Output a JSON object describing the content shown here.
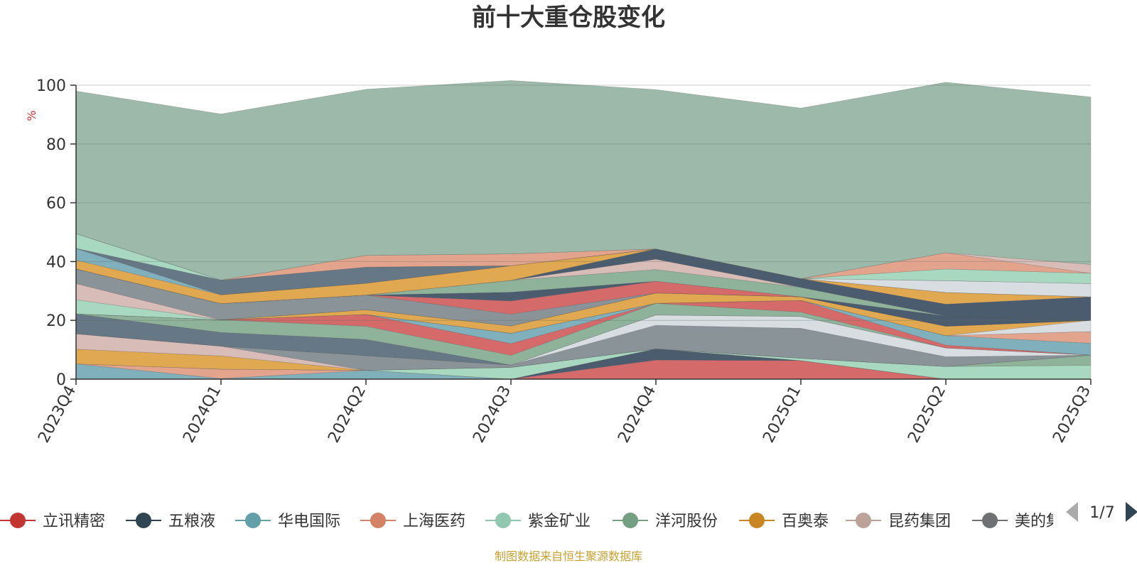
{
  "chart_data": {
    "type": "area",
    "title": "前十大重仓股变化",
    "ylabel": "%",
    "ylim": [
      0,
      100
    ],
    "yticks": [
      0,
      20,
      40,
      60,
      80,
      100
    ],
    "categories": [
      "2023Q4",
      "2024Q1",
      "2024Q2",
      "2024Q3",
      "2024Q4",
      "2025Q1",
      "2025Q2",
      "2025Q3"
    ],
    "series": [
      {
        "name": "立讯精密",
        "color": "#d46a6a",
        "values": [
          0,
          0,
          0,
          0,
          6.5,
          6.3,
          0,
          0
        ]
      },
      {
        "name": "五粮液",
        "color": "#4a5c6e",
        "values": [
          0,
          0,
          0,
          0,
          3.8,
          0,
          0,
          0
        ]
      },
      {
        "name": "华电国际",
        "color": "#7fb0bb",
        "values": [
          5.2,
          0.2,
          3.0,
          0,
          0,
          0,
          0,
          0
        ]
      },
      {
        "name": "上海医药",
        "color": "#e3a48d",
        "values": [
          0,
          3.2,
          0,
          0,
          0,
          0,
          0,
          0
        ]
      },
      {
        "name": "紫金矿业",
        "color": "#a8d8c0",
        "values": [
          0,
          0,
          0,
          4.0,
          0,
          0.8,
          4.3,
          4.7
        ]
      },
      {
        "name": "洋河股份",
        "color": "#8fb29a",
        "values": [
          0,
          0,
          0,
          0,
          0,
          0,
          0,
          3.5
        ]
      },
      {
        "name": "百奥泰",
        "color": "#e0a850",
        "values": [
          5.0,
          4.5,
          0,
          0,
          0,
          0,
          0,
          0
        ]
      },
      {
        "name": "昆药集团",
        "color": "#d8bcb8",
        "values": [
          5.2,
          3.3,
          0,
          0,
          0,
          0,
          0,
          0
        ]
      },
      {
        "name": "美的集团",
        "color": "#8a9498",
        "values": [
          0,
          0,
          5.0,
          0.8,
          8.0,
          10.2,
          3.3,
          0
        ]
      },
      {
        "name": "",
        "color": "#d8dde2",
        "values": [
          0,
          0,
          0,
          0,
          3.5,
          4.0,
          3.0,
          0
        ]
      },
      {
        "name": "",
        "color": "#667886",
        "values": [
          6.8,
          4.7,
          5.5,
          0,
          0,
          0,
          0,
          0
        ]
      },
      {
        "name": "",
        "color": "#8fb29a",
        "values": [
          0,
          4.3,
          4.5,
          3.3,
          4.0,
          1.5,
          0,
          0
        ]
      },
      {
        "name": "",
        "color": "#d46a6a",
        "values": [
          0,
          0,
          4.0,
          4.0,
          0,
          4.0,
          1.0,
          0
        ]
      },
      {
        "name": "",
        "color": "#7fb0bb",
        "values": [
          0,
          0,
          0,
          3.5,
          0,
          0,
          3.2,
          4.0
        ]
      },
      {
        "name": "",
        "color": "#e3a48d",
        "values": [
          0,
          0,
          0,
          0,
          0,
          0,
          0,
          4.0
        ]
      },
      {
        "name": "",
        "color": "#d8dde2",
        "values": [
          0,
          0,
          0,
          0,
          0,
          0,
          0,
          3.8
        ]
      },
      {
        "name": "",
        "color": "#e0a850",
        "values": [
          0,
          0,
          1.6,
          2.5,
          3.5,
          1.2,
          3.2,
          0
        ]
      },
      {
        "name": "",
        "color": "#a8d8c0",
        "values": [
          4.8,
          0,
          0,
          0,
          0,
          0,
          0,
          0
        ]
      },
      {
        "name": "",
        "color": "#d8bcb8",
        "values": [
          5.5,
          0,
          0,
          0,
          0,
          0,
          0,
          0
        ]
      },
      {
        "name": "",
        "color": "#8a9498",
        "values": [
          5.0,
          5.5,
          5.0,
          4.0,
          0,
          0,
          0,
          0
        ]
      },
      {
        "name": "",
        "color": "#d46a6a",
        "values": [
          0,
          0,
          0,
          4.5,
          4.0,
          0,
          0,
          0
        ]
      },
      {
        "name": "",
        "color": "#4a5c6e",
        "values": [
          0,
          0,
          0,
          3.0,
          0,
          0,
          3.5,
          0
        ]
      },
      {
        "name": "",
        "color": "#8fb29a",
        "values": [
          0,
          0,
          0,
          4.0,
          4.0,
          3.2,
          0,
          0
        ]
      },
      {
        "name": "",
        "color": "#d8bcb8",
        "values": [
          0,
          0,
          0,
          0,
          3.5,
          0,
          0,
          0
        ]
      },
      {
        "name": "",
        "color": "#4a5c6e",
        "values": [
          0,
          0,
          0,
          0,
          3.5,
          3.0,
          4.0,
          8.0
        ]
      },
      {
        "name": "",
        "color": "#e0a850",
        "values": [
          3.0,
          3.0,
          4.0,
          5.0,
          0,
          0,
          4.0,
          0
        ]
      },
      {
        "name": "",
        "color": "#7fb0bb",
        "values": [
          4.0,
          0,
          0,
          0,
          0,
          0,
          0,
          0
        ]
      },
      {
        "name": "",
        "color": "#d8dde2",
        "values": [
          0,
          0,
          0,
          0,
          0,
          0,
          4.0,
          4.5
        ]
      },
      {
        "name": "",
        "color": "#667886",
        "values": [
          0,
          5.0,
          5.5,
          0,
          0,
          0,
          0,
          0
        ]
      },
      {
        "name": "",
        "color": "#a8d8c0",
        "values": [
          5.0,
          0,
          0,
          0,
          0,
          0,
          4.0,
          3.5
        ]
      },
      {
        "name": "",
        "color": "#e3a48d",
        "values": [
          0,
          0,
          4.0,
          4.0,
          0,
          0,
          5.5,
          0
        ]
      },
      {
        "name": "",
        "color": "#d8bcb8",
        "values": [
          0,
          0,
          0,
          0,
          0,
          0,
          0,
          3.0
        ]
      },
      {
        "name": "",
        "color": "#9db9a9",
        "values": [
          48.5,
          56.5,
          56.5,
          59.0,
          54.2,
          58.0,
          58.0,
          57.0
        ]
      }
    ],
    "legend_items": [
      {
        "name": "立讯精密",
        "color": "#c23531"
      },
      {
        "name": "五粮液",
        "color": "#2f4554"
      },
      {
        "name": "华电国际",
        "color": "#61a0a8"
      },
      {
        "name": "上海医药",
        "color": "#d48265"
      },
      {
        "name": "紫金矿业",
        "color": "#91c7ae"
      },
      {
        "name": "洋河股份",
        "color": "#749f83"
      },
      {
        "name": "百奥泰",
        "color": "#ca8622"
      },
      {
        "name": "昆药集团",
        "color": "#bda29a"
      },
      {
        "name": "美的集团",
        "color": "#6e7074"
      }
    ],
    "legend_page": "1/7",
    "source": "制图数据来自恒生聚源数据库"
  }
}
